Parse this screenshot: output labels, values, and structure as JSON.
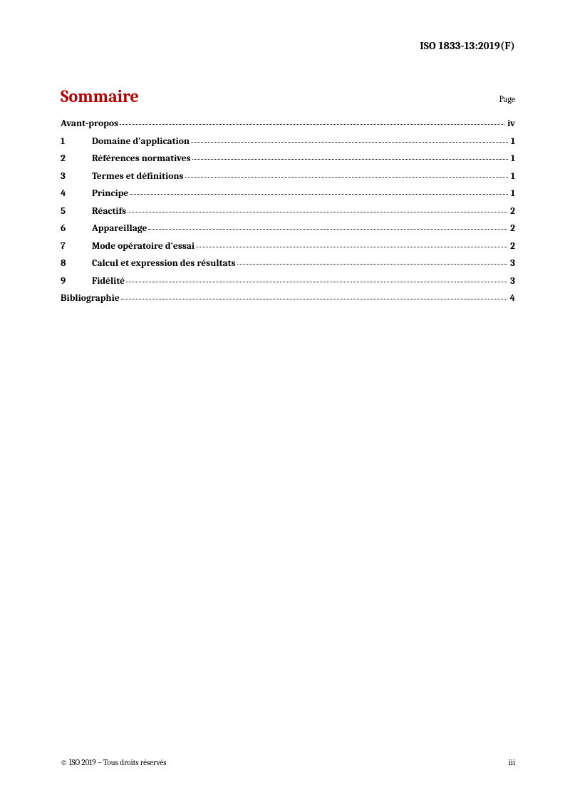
{
  "header": {
    "document_code": "ISO 1833-13:2019(F)"
  },
  "toc": {
    "title": "Sommaire",
    "page_label": "Page",
    "title_color": "#b30000",
    "entries": [
      {
        "num": "",
        "label": "Avant-propos",
        "page": "iv",
        "indent": false
      },
      {
        "num": "1",
        "label": "Domaine d'application",
        "page": "1",
        "indent": true
      },
      {
        "num": "2",
        "label": "Références normatives",
        "page": "1",
        "indent": true
      },
      {
        "num": "3",
        "label": "Termes et définitions",
        "page": "1",
        "indent": true
      },
      {
        "num": "4",
        "label": "Principe",
        "page": "1",
        "indent": true
      },
      {
        "num": "5",
        "label": "Réactifs",
        "page": "2",
        "indent": true
      },
      {
        "num": "6",
        "label": "Appareillage",
        "page": "2",
        "indent": true
      },
      {
        "num": "7",
        "label": "Mode opératoire d'essai",
        "page": "2",
        "indent": true
      },
      {
        "num": "8",
        "label": "Calcul et expression des résultats",
        "page": "3",
        "indent": true
      },
      {
        "num": "9",
        "label": "Fidélité",
        "page": "3",
        "indent": true
      },
      {
        "num": "",
        "label": "Bibliographie",
        "page": "4",
        "indent": false
      }
    ]
  },
  "footer": {
    "copyright": "© ISO 2019 – Tous droits réservés",
    "page_number": "iii"
  }
}
